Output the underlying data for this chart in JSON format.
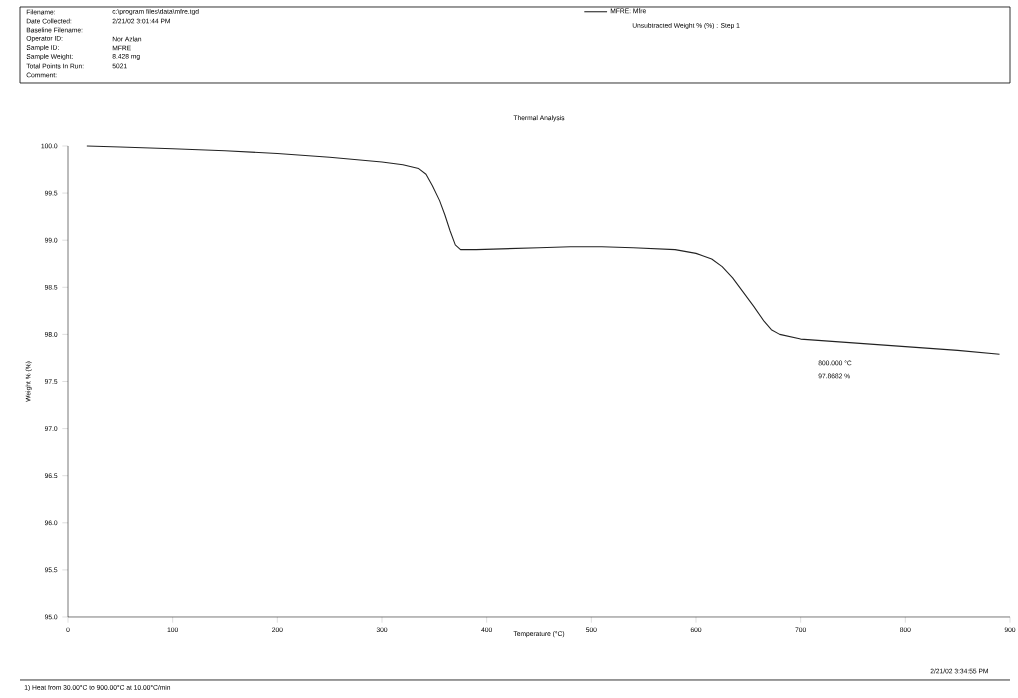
{
  "chart_data": {
    "type": "line",
    "title": "Thermal Analysis",
    "xlabel": "Temperature (°C)",
    "ylabel": "Weight % (%)",
    "series": [
      {
        "name": "MFRE: Mfre",
        "color": "#222222",
        "x": [
          18,
          50,
          100,
          150,
          200,
          250,
          300,
          320,
          335,
          342,
          348,
          355,
          360,
          365,
          370,
          375,
          390,
          420,
          450,
          480,
          510,
          540,
          560,
          580,
          600,
          615,
          625,
          635,
          645,
          655,
          665,
          672,
          680,
          700,
          750,
          800,
          850,
          890
        ],
        "values": [
          100.0,
          99.99,
          99.97,
          99.95,
          99.92,
          99.88,
          99.83,
          99.8,
          99.76,
          99.7,
          99.58,
          99.42,
          99.27,
          99.1,
          98.95,
          98.9,
          98.9,
          98.91,
          98.92,
          98.93,
          98.93,
          98.92,
          98.91,
          98.9,
          98.86,
          98.8,
          98.72,
          98.6,
          98.45,
          98.3,
          98.14,
          98.05,
          98.0,
          97.95,
          97.91,
          97.87,
          97.83,
          97.79
        ]
      }
    ],
    "xlim": [
      0,
      900
    ],
    "ylim": [
      95.0,
      100.0
    ],
    "xticks": [
      0,
      100,
      200,
      300,
      400,
      500,
      600,
      700,
      800,
      900
    ],
    "yticks": [
      {
        "value": 95.0,
        "label": "95.0"
      },
      {
        "value": 95.5,
        "label": "95.5"
      },
      {
        "value": 96.0,
        "label": "96.0"
      },
      {
        "value": 96.5,
        "label": "96.5"
      },
      {
        "value": 97.0,
        "label": "97.0"
      },
      {
        "value": 97.5,
        "label": "97.5"
      },
      {
        "value": 98.0,
        "label": "98.0"
      },
      {
        "value": 98.5,
        "label": "98.5"
      },
      {
        "value": 99.0,
        "label": "99.0"
      },
      {
        "value": 99.5,
        "label": "99.5"
      },
      {
        "value": 100.0,
        "label": "100.0"
      }
    ],
    "grid": false,
    "legend": "top",
    "marker": "none",
    "line_style": "solid",
    "annotations": [
      "Filename:",
      "c:\\program files\\data\\mfre.tgd",
      "Date Collected:",
      "2/21/02 3:01:44 PM",
      "Baseline Filename:",
      "Operator ID:",
      "Nor Azlan",
      "Sample ID:",
      "MFRE",
      "Sample Weight:",
      "8.428 mg",
      "Total Points In Run:",
      "5021",
      "Comment:",
      "Unsubtracted Weight % (%) : Step 1",
      "1) Heat from 30.00°C to 900.00°C at 10.00°C/min",
      "2/21/02 3:34:55 PM",
      "800.000 °C",
      "97.8682 %"
    ]
  }
}
